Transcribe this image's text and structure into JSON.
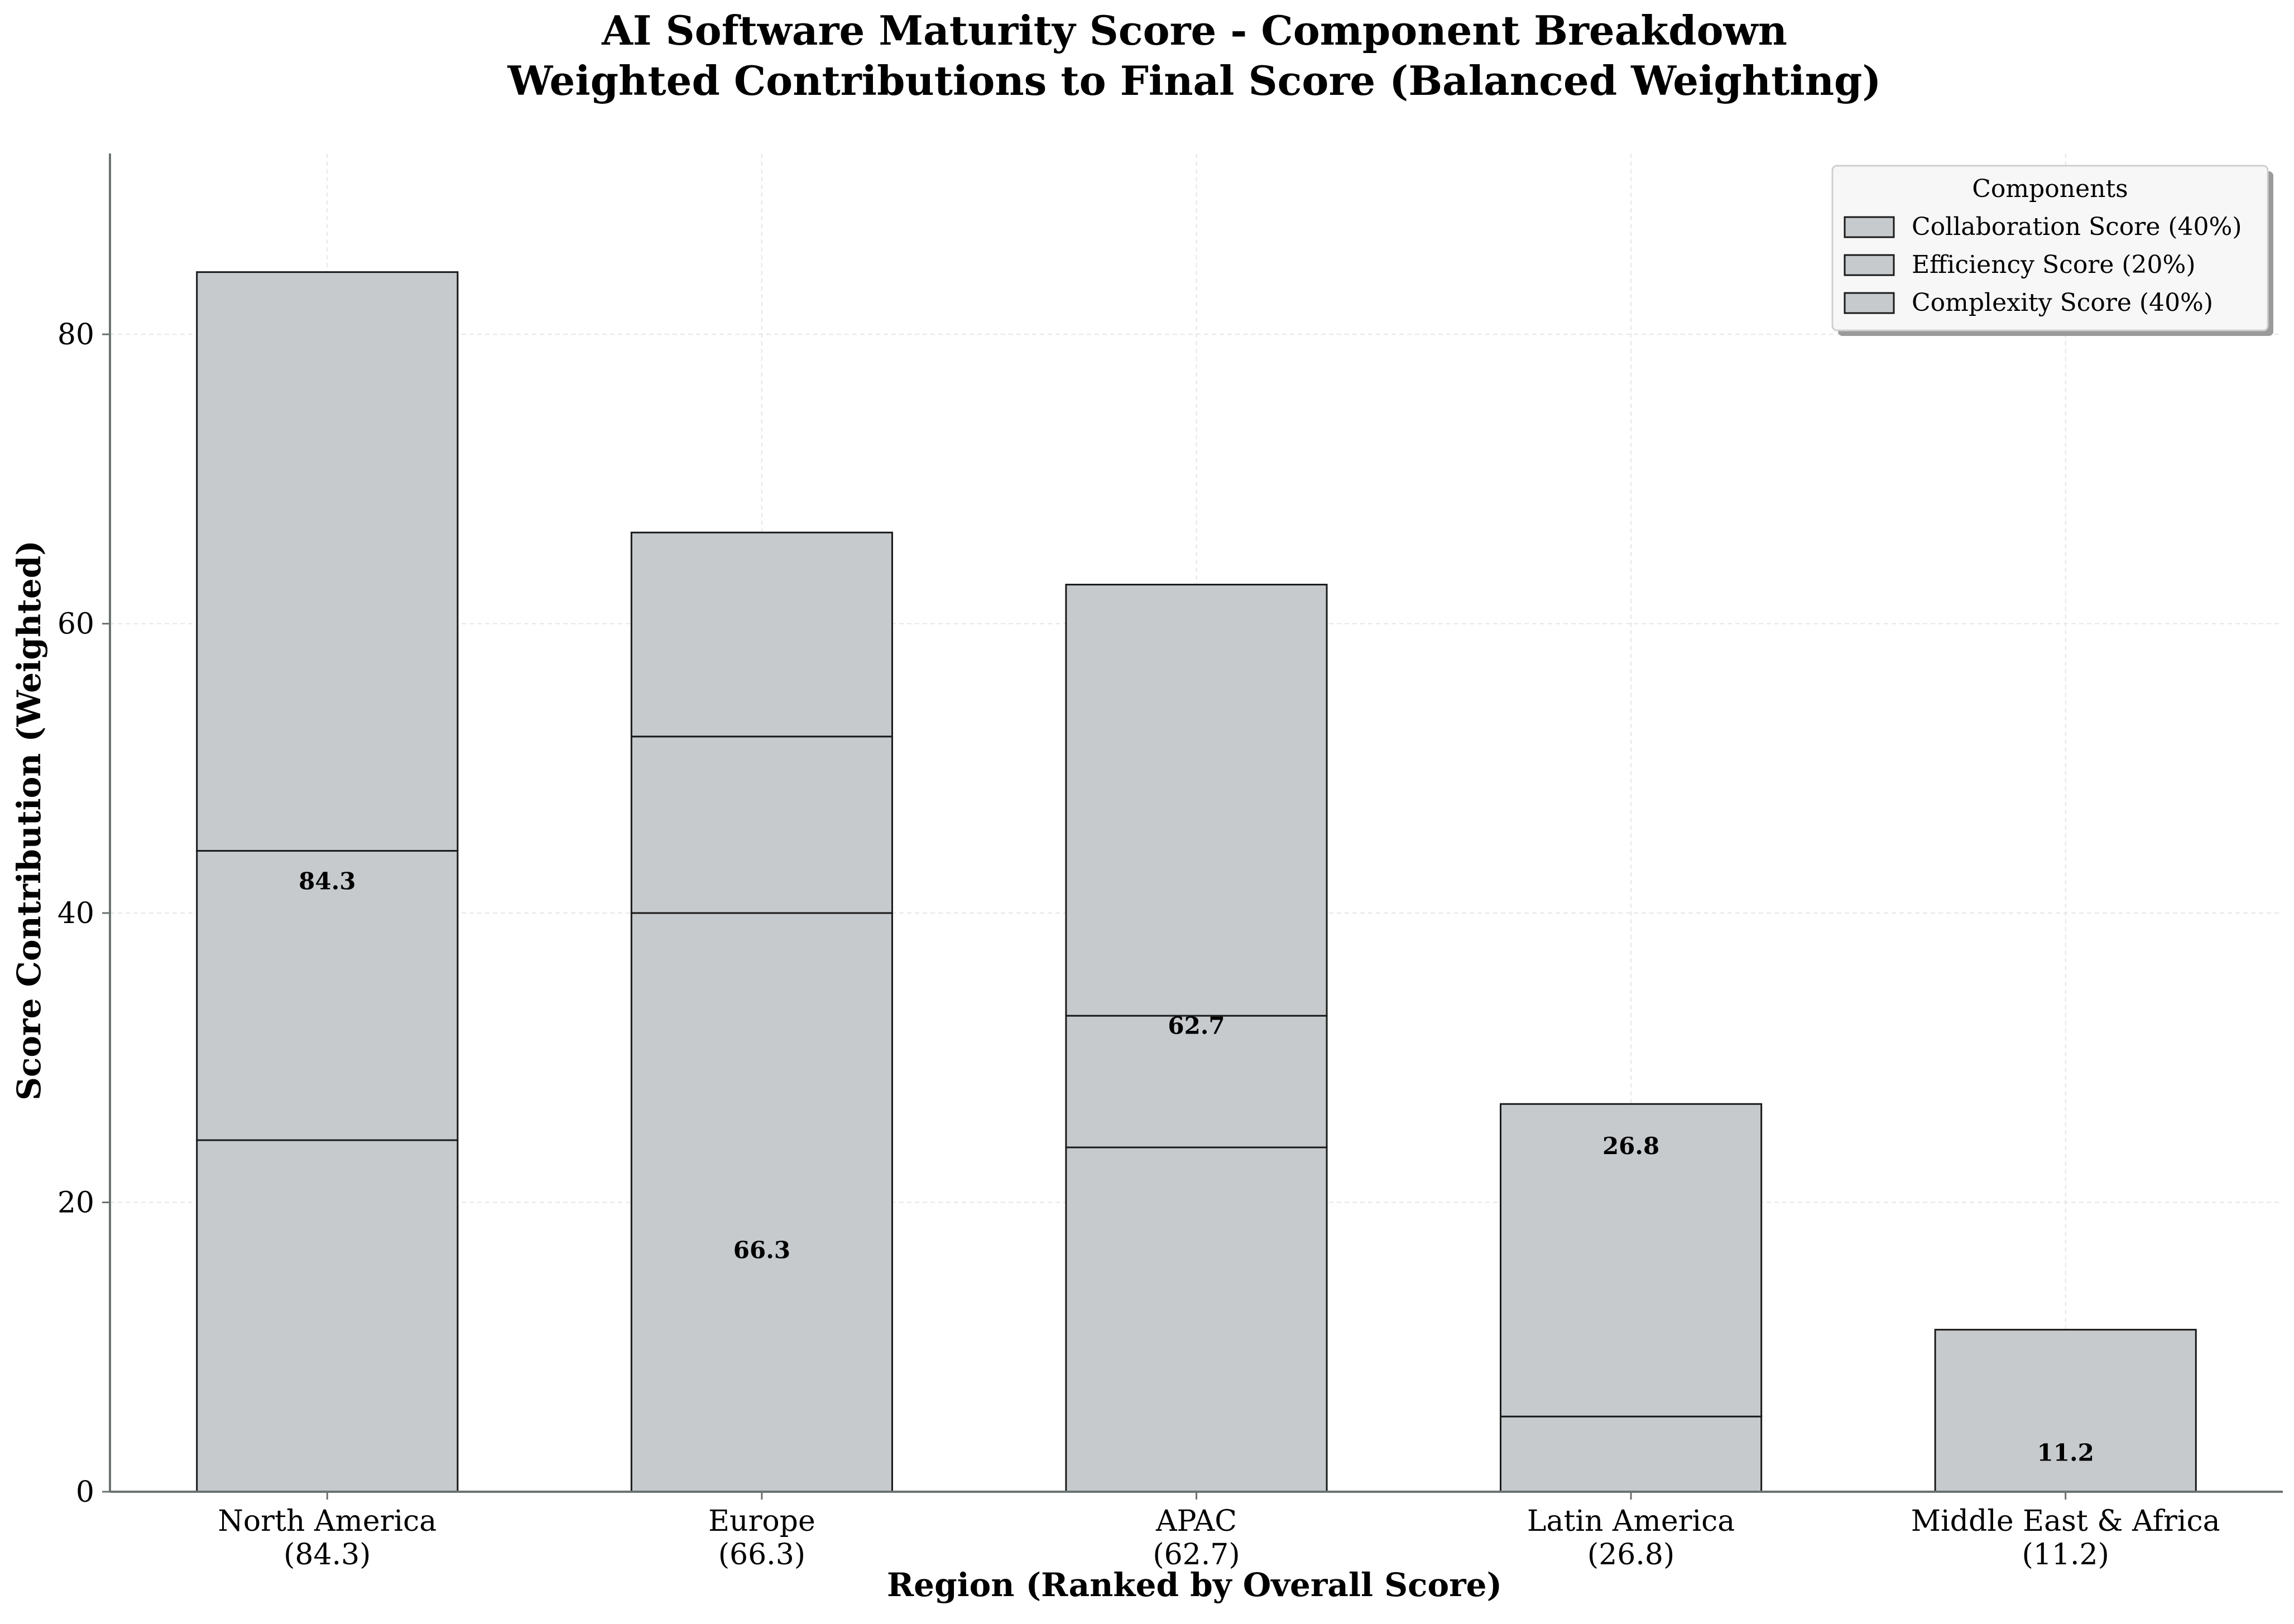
{
  "chart_data": {
    "type": "bar",
    "stacked": true,
    "title": "AI Software Maturity Score - Component Breakdown",
    "subtitle": "Weighted Contributions to Final Score (Balanced Weighting)",
    "xlabel": "Region (Ranked by Overall Score)",
    "ylabel": "Score Contribution (Weighted)",
    "ylim": [
      0,
      92.5
    ],
    "yticks": [
      0,
      20,
      40,
      60,
      80
    ],
    "grid": true,
    "legend_title": "Components",
    "legend_position": "top-right",
    "bar_color": "#c6cacd",
    "edge_color": "#1a1a1a",
    "categories": [
      "North America",
      "Europe",
      "APAC",
      "Latin America",
      "Middle East & Africa"
    ],
    "category_totals_text": [
      "(84.3)",
      "(66.3)",
      "(62.7)",
      "(26.8)",
      "(11.2)"
    ],
    "series": [
      {
        "name": "Complexity Score (40%)",
        "values": [
          24.3,
          40.0,
          23.8,
          5.2,
          0.0
        ]
      },
      {
        "name": "Efficiency Score (20%)",
        "values": [
          20.0,
          12.2,
          9.1,
          0.0,
          0.0
        ]
      },
      {
        "name": "Collaboration Score (40%)",
        "values": [
          40.0,
          14.1,
          29.8,
          21.6,
          11.2
        ]
      }
    ],
    "legend_order": [
      "Collaboration Score (40%)",
      "Efficiency Score (20%)",
      "Complexity Score (40%)"
    ],
    "totals": [
      84.3,
      66.3,
      62.7,
      26.8,
      11.2
    ],
    "total_labels": [
      "84.3",
      "66.3",
      "62.7",
      "26.8",
      "11.2"
    ]
  }
}
